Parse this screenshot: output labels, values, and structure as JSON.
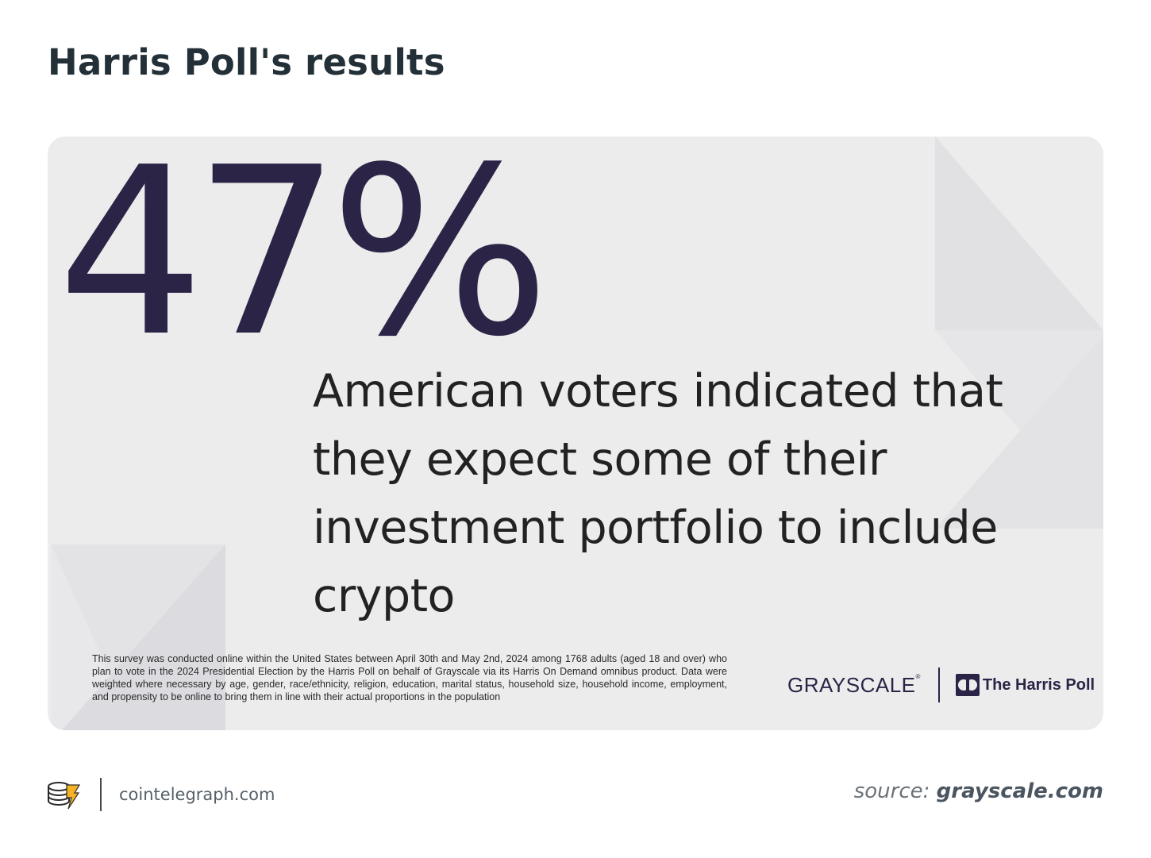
{
  "page": {
    "title": "Harris Poll's results"
  },
  "card": {
    "big_stat": "47%",
    "headline": "American voters indicated that they expect some of their investment portfolio to include crypto",
    "footnote": "This survey was conducted online within the United States between April 30th and May 2nd, 2024 among 1768 adults (aged 18 and over) who plan to vote in the 2024 Presidential Election by the Harris Poll on behalf of Grayscale via its Harris On Demand omnibus product. Data were weighted where necessary by age, gender, race/ethnicity, religion, education, marital status, household size, household income, employment, and propensity to be online to bring them in line with their actual proportions in the population",
    "grayscale_logo": "GRAYSCALE",
    "grayscale_mark": "®",
    "harris_logo": "The Harris Poll"
  },
  "footer": {
    "brand_domain": "cointelegraph.com",
    "source_prefix": "source:",
    "source_domain": "grayscale.com"
  },
  "colors": {
    "stat_purple": "#2c2447",
    "card_background": "#ececec",
    "title_text": "#243038",
    "cointelegraph_yellow": "#f5b323"
  },
  "icons": {
    "cointelegraph": "cointelegraph-logo-icon",
    "harris": "harris-poll-mark-icon"
  }
}
